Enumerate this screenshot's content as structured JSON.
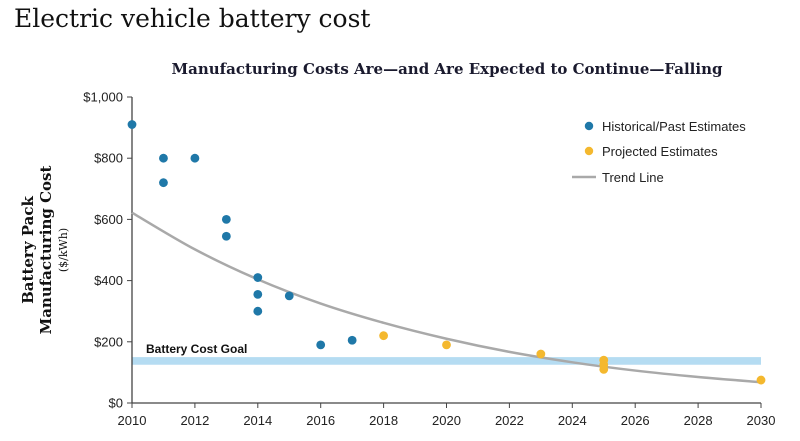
{
  "page_title": "Electric vehicle battery cost",
  "colors": {
    "historical": "#1f78a8",
    "projected": "#f4b82e",
    "trend": "#a9a9a9",
    "goal_band": "#b5dcf2",
    "axis": "#444444"
  },
  "chart_data": {
    "type": "scatter",
    "title": "Manufacturing Costs Are—and Are Expected to Continue—Falling",
    "ylabel_line1": "Battery Pack",
    "ylabel_line2": "Manufacturing Cost",
    "yunit": "($/kWh)",
    "xlabel": "",
    "xlim": [
      2010,
      2030
    ],
    "ylim": [
      0,
      1000
    ],
    "x_ticks": [
      "2010",
      "2012",
      "2014",
      "2016",
      "2018",
      "2020",
      "2022",
      "2024",
      "2026",
      "2028",
      "2030"
    ],
    "y_ticks": [
      "$0",
      "$200",
      "$400",
      "$600",
      "$800",
      "$1,000"
    ],
    "grid": false,
    "legend_position": "top-right",
    "series": [
      {
        "name": "Historical/Past Estimates",
        "points": [
          [
            2010,
            910
          ],
          [
            2011,
            800
          ],
          [
            2011,
            720
          ],
          [
            2012,
            800
          ],
          [
            2013,
            600
          ],
          [
            2013,
            545
          ],
          [
            2014,
            410
          ],
          [
            2014,
            355
          ],
          [
            2014,
            300
          ],
          [
            2015,
            350
          ],
          [
            2016,
            190
          ],
          [
            2017,
            205
          ]
        ]
      },
      {
        "name": "Projected Estimates",
        "points": [
          [
            2018,
            220
          ],
          [
            2020,
            190
          ],
          [
            2023,
            160
          ],
          [
            2025,
            140
          ],
          [
            2025,
            125
          ],
          [
            2025,
            110
          ],
          [
            2030,
            75
          ]
        ]
      }
    ],
    "trend_line": {
      "name": "Trend Line",
      "points": [
        [
          2010,
          622
        ],
        [
          2012,
          502
        ],
        [
          2014,
          404
        ],
        [
          2016,
          325
        ],
        [
          2018,
          262
        ],
        [
          2020,
          210
        ],
        [
          2022,
          167
        ],
        [
          2024,
          133
        ],
        [
          2026,
          106
        ],
        [
          2028,
          85
        ],
        [
          2030,
          68
        ]
      ]
    },
    "goal_band": {
      "label": "Battery Cost Goal",
      "ymin": 125,
      "ymax": 150
    }
  }
}
